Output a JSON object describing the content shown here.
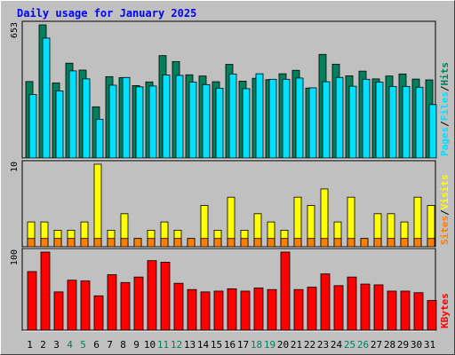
{
  "chart_data": {
    "type": "bar",
    "title": "Daily usage for January 2025",
    "categories": [
      "1",
      "2",
      "3",
      "4",
      "5",
      "6",
      "7",
      "8",
      "9",
      "10",
      "11",
      "12",
      "13",
      "14",
      "15",
      "16",
      "17",
      "18",
      "19",
      "20",
      "21",
      "22",
      "23",
      "24",
      "25",
      "26",
      "27",
      "28",
      "29",
      "30",
      "31"
    ],
    "weekend_days": [
      "4",
      "5",
      "11",
      "12",
      "18",
      "19",
      "25",
      "26"
    ],
    "colors": {
      "hits": "#00805c",
      "files": "#00e0ff",
      "visits": "#ffff00",
      "sites": "#ff8000",
      "kbytes": "#ff0000",
      "title": "#0000ff",
      "weekend_label": "#00805c"
    },
    "panels": [
      {
        "name": "hits-files-pages",
        "ymax_label": "653",
        "ymax": 653,
        "legend": [
          "Pages",
          "/",
          "Files",
          "/",
          "Hits"
        ],
        "legend_colors": [
          "#00e0ff",
          "#000000",
          "#00e0ff",
          "#000000",
          "#00805c"
        ],
        "series": [
          {
            "name": "Hits",
            "color": "#00805c",
            "values": [
              375,
              653,
              368,
              465,
              431,
              251,
              399,
              394,
              355,
              373,
              502,
              473,
              408,
              402,
              374,
              459,
              377,
              391,
              384,
              413,
              430,
              343,
              508,
              460,
              403,
              426,
              388,
              402,
              412,
              387,
              383
            ]
          },
          {
            "name": "Files",
            "color": "#00e0ff",
            "values": [
              311,
              588,
              329,
              427,
              388,
              190,
              357,
              395,
              349,
              353,
              407,
              405,
              372,
              360,
              342,
              412,
              340,
              413,
              386,
              386,
              392,
              344,
              374,
              395,
              352,
              386,
              372,
              351,
              351,
              347,
              262
            ]
          },
          {
            "name": "Pages",
            "color": "#00e0ff",
            "values": [
              0,
              0,
              0,
              0,
              0,
              0,
              0,
              0,
              0,
              0,
              0,
              0,
              0,
              0,
              0,
              0,
              0,
              0,
              0,
              0,
              0,
              0,
              0,
              0,
              0,
              0,
              0,
              0,
              0,
              0,
              0
            ]
          }
        ]
      },
      {
        "name": "visits-sites",
        "ymax_label": "10",
        "ymax": 10,
        "legend": [
          "Sites",
          "/",
          "Visits"
        ],
        "legend_colors": [
          "#ff8000",
          "#000000",
          "#ffff00"
        ],
        "series": [
          {
            "name": "Visits",
            "color": "#ffff00",
            "values": [
              3,
              3,
              2,
              2,
              3,
              10,
              2,
              4,
              1,
              2,
              3,
              2,
              1,
              5,
              2,
              6,
              2,
              4,
              3,
              2,
              6,
              5,
              7,
              3,
              6,
              1,
              4,
              4,
              3,
              6,
              5
            ]
          },
          {
            "name": "Sites",
            "color": "#ff8000",
            "values": [
              1,
              1,
              1,
              1,
              1,
              1,
              1,
              1,
              1,
              1,
              1,
              1,
              1,
              1,
              1,
              1,
              1,
              1,
              1,
              1,
              1,
              1,
              1,
              1,
              1,
              1,
              1,
              1,
              1,
              1,
              1
            ]
          }
        ]
      },
      {
        "name": "kbytes",
        "ymax_label": "100",
        "ymax": 100,
        "legend": [
          "KBytes"
        ],
        "legend_colors": [
          "#ff0000"
        ],
        "series": [
          {
            "name": "KBytes",
            "color": "#ff0000",
            "values": [
              75,
              100,
              49,
              64,
              63,
              44,
              71,
              61,
              68,
              89,
              87,
              60,
              52,
              49,
              50,
              53,
              50,
              54,
              52,
              100,
              52,
              55,
              72,
              57,
              68,
              59,
              58,
              50,
              50,
              48,
              38
            ]
          }
        ]
      }
    ]
  }
}
